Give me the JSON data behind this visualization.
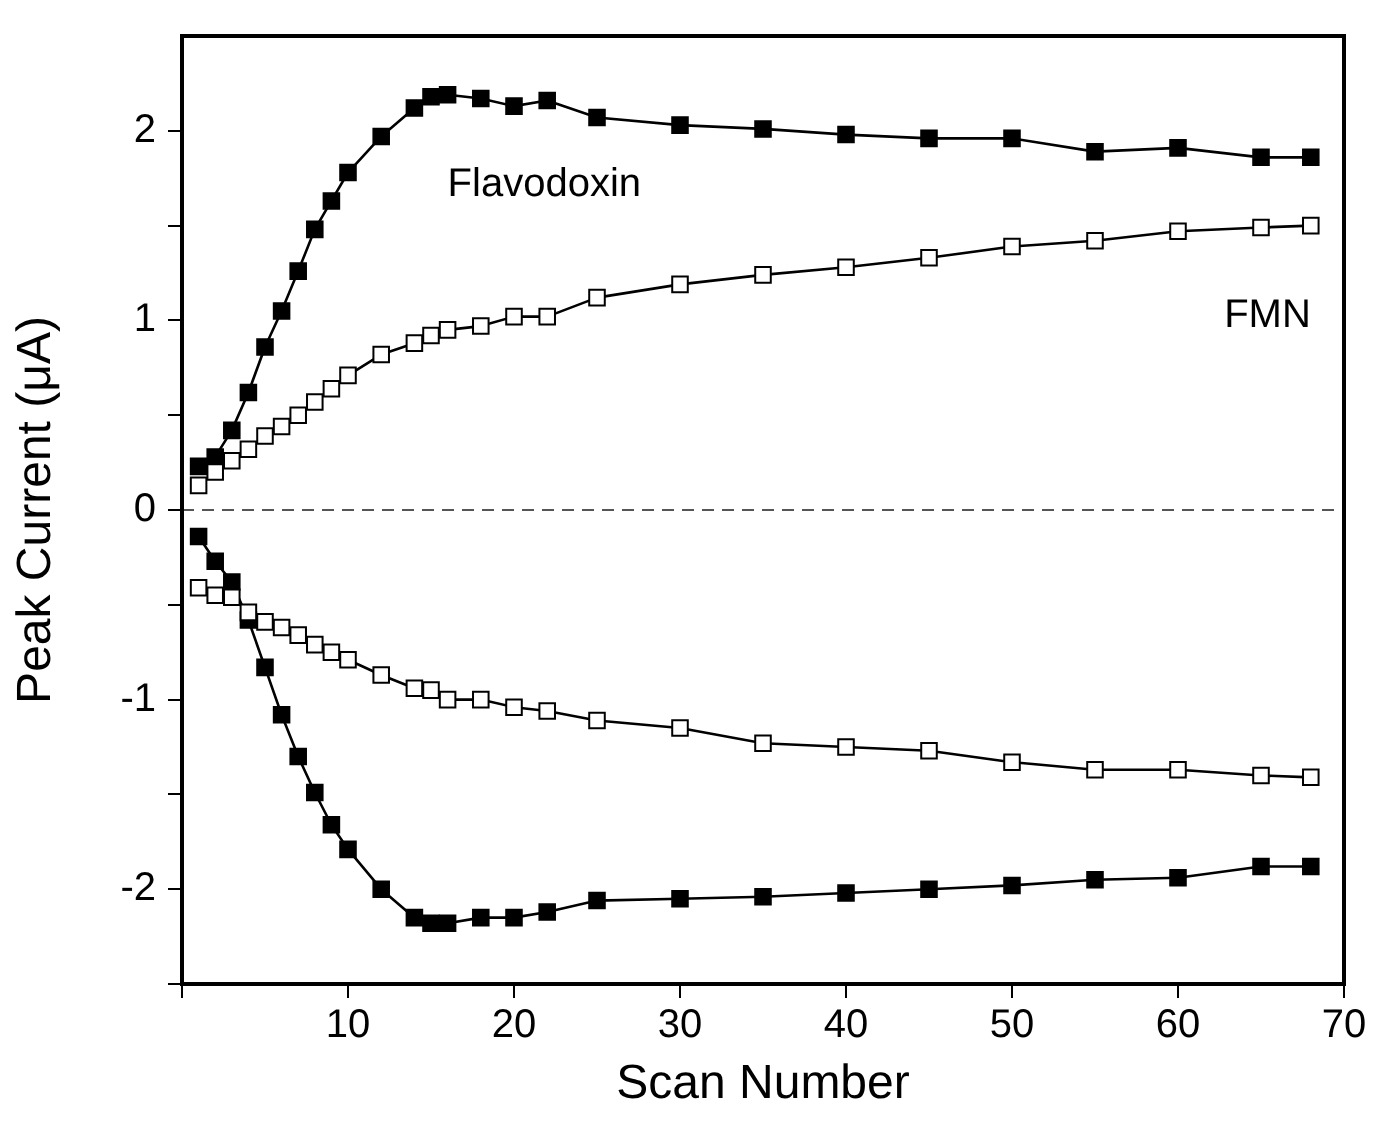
{
  "chart_data": {
    "type": "line",
    "xlabel": "Scan Number",
    "ylabel": "Peak Current (μA)",
    "xlim": [
      0,
      70
    ],
    "xticks": [
      {
        "value": 0,
        "label": null
      },
      10,
      20,
      30,
      40,
      50,
      60,
      70
    ],
    "ylim": [
      -2.5,
      2.5
    ],
    "yticks": [
      {
        "value": -2.5,
        "label": null
      },
      -2,
      {
        "value": -1.5,
        "label": null
      },
      -1,
      {
        "value": -0.5,
        "label": null
      },
      0,
      {
        "value": 0.5,
        "label": null
      },
      1,
      {
        "value": 1.5,
        "label": null
      },
      2
    ],
    "grid": false,
    "legend": false,
    "marker": "square",
    "line_style": "solid",
    "x": [
      1,
      2,
      3,
      4,
      5,
      6,
      7,
      8,
      9,
      10,
      12,
      14,
      15,
      16,
      18,
      20,
      22,
      25,
      30,
      35,
      40,
      45,
      50,
      55,
      60,
      65,
      68
    ],
    "series": [
      {
        "name": "Flavodoxin",
        "color": "#000000",
        "values": [
          0.23,
          0.28,
          0.42,
          0.62,
          0.86,
          1.05,
          1.26,
          1.48,
          1.63,
          1.78,
          1.97,
          2.12,
          2.18,
          2.19,
          2.17,
          2.13,
          2.16,
          2.07,
          2.03,
          2.01,
          1.98,
          1.96,
          1.96,
          1.89,
          1.91,
          1.86,
          1.86
        ]
      },
      {
        "name": "FMN",
        "color": "#ffffff",
        "values": [
          0.13,
          0.2,
          0.26,
          0.32,
          0.39,
          0.44,
          0.5,
          0.57,
          0.64,
          0.71,
          0.82,
          0.88,
          0.92,
          0.95,
          0.97,
          1.02,
          1.02,
          1.12,
          1.19,
          1.24,
          1.28,
          1.33,
          1.39,
          1.42,
          1.47,
          1.49,
          1.5
        ]
      },
      {
        "color": "#000000",
        "values": [
          -0.14,
          -0.27,
          -0.38,
          -0.58,
          -0.83,
          -1.08,
          -1.3,
          -1.49,
          -1.66,
          -1.79,
          -2.0,
          -2.15,
          -2.18,
          -2.18,
          -2.15,
          -2.15,
          -2.12,
          -2.06,
          -2.05,
          -2.04,
          -2.02,
          -2.0,
          -1.98,
          -1.95,
          -1.94,
          -1.88,
          -1.88
        ]
      },
      {
        "color": "#ffffff",
        "values": [
          -0.41,
          -0.45,
          -0.46,
          -0.54,
          -0.59,
          -0.62,
          -0.66,
          -0.71,
          -0.75,
          -0.79,
          -0.87,
          -0.94,
          -0.95,
          -1.0,
          -1.0,
          -1.04,
          -1.06,
          -1.11,
          -1.15,
          -1.23,
          -1.25,
          -1.27,
          -1.33,
          -1.37,
          -1.37,
          -1.4,
          -1.41
        ]
      }
    ],
    "ref_lines": [
      {
        "axis": "y",
        "value": 0,
        "line_style": "dashed",
        "color": "#555555"
      }
    ]
  }
}
